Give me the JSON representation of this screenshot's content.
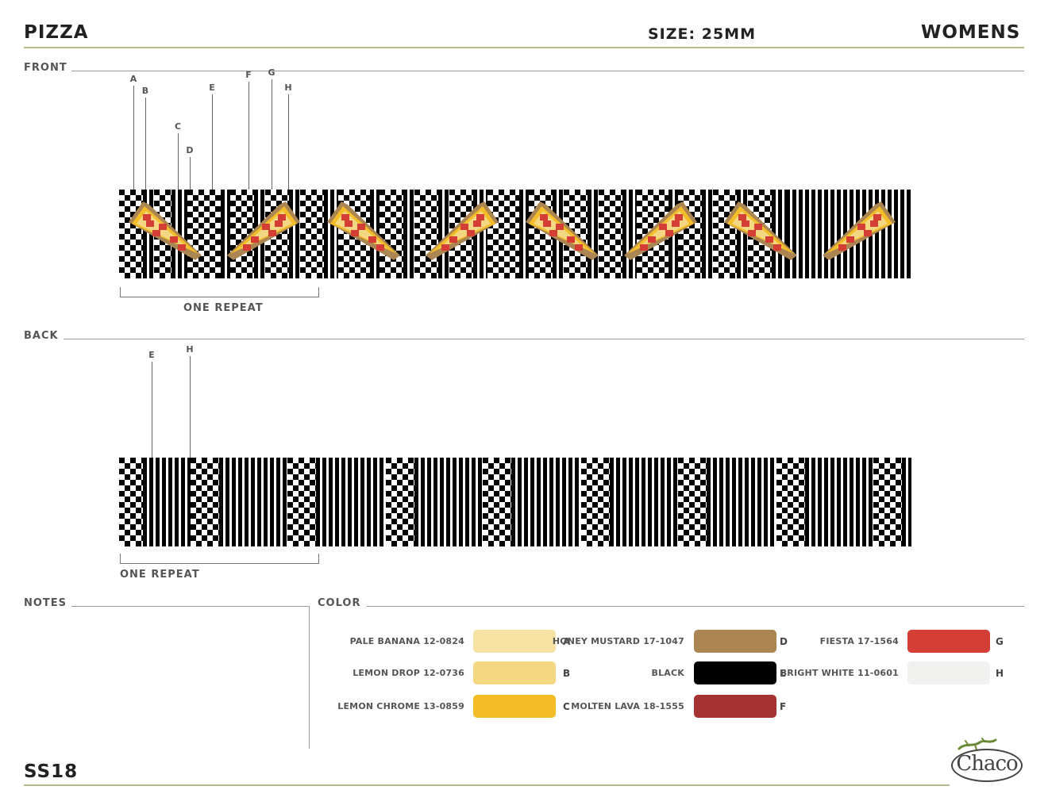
{
  "header": {
    "title": "PIZZA",
    "size": "SIZE: 25MM",
    "gender": "WOMENS"
  },
  "sections": {
    "front": "FRONT",
    "back": "BACK",
    "notes": "NOTES",
    "color": "COLOR"
  },
  "front": {
    "repeat_label": "ONE REPEAT",
    "callouts": [
      "A",
      "B",
      "C",
      "D",
      "E",
      "F",
      "G",
      "H"
    ]
  },
  "back": {
    "repeat_label": "ONE REPEAT",
    "callouts": [
      "E",
      "H"
    ]
  },
  "colors": [
    {
      "name": "PALE BANANA 12-0824",
      "code": "A",
      "hex": "#f8e2a3"
    },
    {
      "name": "LEMON DROP 12-0736",
      "code": "B",
      "hex": "#f4d782"
    },
    {
      "name": "LEMON CHROME 13-0859",
      "code": "C",
      "hex": "#f4bd28"
    },
    {
      "name": "HONEY MUSTARD 17-1047",
      "code": "D",
      "hex": "#ab8653"
    },
    {
      "name": "BLACK",
      "code": "E",
      "hex": "#000000"
    },
    {
      "name": "MOLTEN LAVA 18-1555",
      "code": "F",
      "hex": "#a53333"
    },
    {
      "name": "FIESTA 17-1564",
      "code": "G",
      "hex": "#d43e34"
    },
    {
      "name": "BRIGHT WHITE 11-0601",
      "code": "H",
      "hex": "#f1f1ef"
    }
  ],
  "footer": {
    "season": "SS18",
    "logo": "Chaco"
  }
}
